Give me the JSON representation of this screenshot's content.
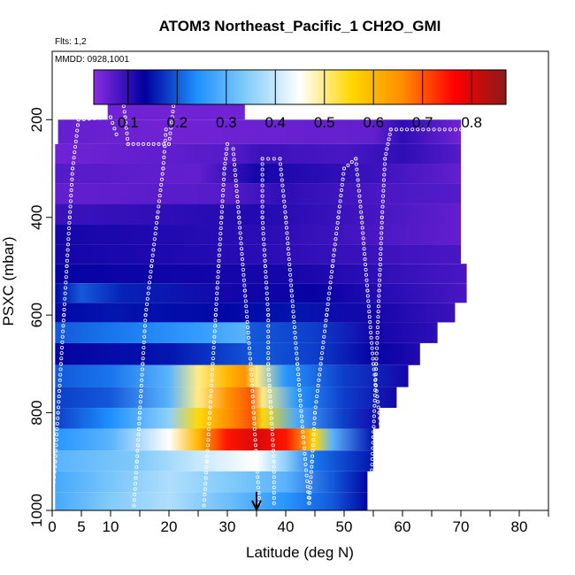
{
  "chart_data": {
    "type": "heatmap",
    "title": "ATOM3 Northeast_Pacific_1 CH2O_GMI",
    "notes": [
      "Flts: 1,2",
      "MMDD: 0928,1001"
    ],
    "xlabel": "Latitude (deg N)",
    "ylabel": "PSXC (mbar)",
    "xlim": [
      0,
      85
    ],
    "ylim": [
      1000,
      60
    ],
    "y_reversed": true,
    "x_ticks": [
      0,
      5,
      10,
      20,
      30,
      40,
      50,
      60,
      70,
      80
    ],
    "x_minor_ticks": [
      15,
      25,
      35,
      45,
      55,
      65,
      75,
      85
    ],
    "y_ticks": [
      200,
      400,
      600,
      800,
      1000
    ],
    "colorbar": {
      "range": [
        0.03,
        0.87
      ],
      "ticks": [
        0.1,
        0.2,
        0.3,
        0.4,
        0.5,
        0.6,
        0.7,
        0.8
      ],
      "tick_labels": [
        "0.1",
        "0.2",
        "0.3",
        "0.4",
        "0.5",
        "0.6",
        "0.7",
        "0.8"
      ],
      "colors": [
        "#8a2be2",
        "#0000a0",
        "#1e90ff",
        "#87cefa",
        "#ffffff",
        "#ffd700",
        "#ff8c00",
        "#ff0000",
        "#8b1a1a"
      ]
    },
    "pressure_levels": [
      170,
      230,
      270,
      310,
      350,
      395,
      435,
      475,
      515,
      555,
      595,
      635,
      680,
      725,
      770,
      810,
      855,
      900,
      940,
      985
    ],
    "layers": [
      {
        "p": 170,
        "x0": 9.5,
        "x1": 33,
        "stops": [
          [
            9.5,
            0.05
          ],
          [
            33,
            0.05
          ]
        ]
      },
      {
        "p": 230,
        "x0": 1,
        "x1": 70,
        "stops": [
          [
            1,
            0.06
          ],
          [
            20,
            0.05
          ],
          [
            55,
            0.06
          ],
          [
            60,
            0.1
          ],
          [
            70,
            0.05
          ]
        ]
      },
      {
        "p": 270,
        "x0": 0.5,
        "x1": 70,
        "stops": [
          [
            0.5,
            0.05
          ],
          [
            30,
            0.07
          ],
          [
            36,
            0.09
          ],
          [
            50,
            0.08
          ],
          [
            60,
            0.1
          ],
          [
            70,
            0.07
          ]
        ]
      },
      {
        "p": 310,
        "x0": 0.5,
        "x1": 70,
        "stops": [
          [
            0.5,
            0.07
          ],
          [
            25,
            0.06
          ],
          [
            35,
            0.12
          ],
          [
            55,
            0.09
          ],
          [
            70,
            0.06
          ]
        ]
      },
      {
        "p": 350,
        "x0": 0.5,
        "x1": 70,
        "stops": [
          [
            0.5,
            0.06
          ],
          [
            30,
            0.07
          ],
          [
            40,
            0.1
          ],
          [
            55,
            0.08
          ],
          [
            70,
            0.07
          ]
        ]
      },
      {
        "p": 395,
        "x0": 0.5,
        "x1": 70,
        "stops": [
          [
            0.5,
            0.09
          ],
          [
            20,
            0.1
          ],
          [
            35,
            0.11
          ],
          [
            50,
            0.09
          ],
          [
            70,
            0.06
          ]
        ]
      },
      {
        "p": 435,
        "x0": 0.5,
        "x1": 70,
        "stops": [
          [
            0.5,
            0.12
          ],
          [
            20,
            0.11
          ],
          [
            40,
            0.1
          ],
          [
            55,
            0.08
          ],
          [
            70,
            0.06
          ]
        ]
      },
      {
        "p": 475,
        "x0": 0.5,
        "x1": 70,
        "stops": [
          [
            0.5,
            0.12
          ],
          [
            25,
            0.11
          ],
          [
            40,
            0.1
          ],
          [
            55,
            0.09
          ],
          [
            70,
            0.08
          ]
        ]
      },
      {
        "p": 515,
        "x0": 0.5,
        "x1": 71,
        "stops": [
          [
            0.5,
            0.13
          ],
          [
            30,
            0.12
          ],
          [
            40,
            0.12
          ],
          [
            55,
            0.1
          ],
          [
            71,
            0.08
          ]
        ]
      },
      {
        "p": 555,
        "x0": 0.5,
        "x1": 71,
        "stops": [
          [
            0.5,
            0.14
          ],
          [
            5,
            0.2
          ],
          [
            12,
            0.16
          ],
          [
            30,
            0.12
          ],
          [
            45,
            0.13
          ],
          [
            55,
            0.11
          ],
          [
            71,
            0.08
          ]
        ]
      },
      {
        "p": 595,
        "x0": 0.5,
        "x1": 69,
        "stops": [
          [
            0.5,
            0.14
          ],
          [
            10,
            0.15
          ],
          [
            30,
            0.14
          ],
          [
            42,
            0.15
          ],
          [
            55,
            0.12
          ],
          [
            69,
            0.09
          ]
        ]
      },
      {
        "p": 635,
        "x0": 0.5,
        "x1": 66,
        "stops": [
          [
            0.5,
            0.2
          ],
          [
            10,
            0.22
          ],
          [
            25,
            0.26
          ],
          [
            33,
            0.3
          ],
          [
            34,
            0.2
          ],
          [
            45,
            0.18
          ],
          [
            55,
            0.12
          ],
          [
            66,
            0.1
          ]
        ]
      },
      {
        "p": 680,
        "x0": 0.5,
        "x1": 63,
        "stops": [
          [
            0.5,
            0.13
          ],
          [
            20,
            0.15
          ],
          [
            35,
            0.2
          ],
          [
            45,
            0.18
          ],
          [
            55,
            0.13
          ],
          [
            63,
            0.11
          ]
        ]
      },
      {
        "p": 725,
        "x0": 0.5,
        "x1": 61,
        "stops": [
          [
            0.5,
            0.2
          ],
          [
            10,
            0.22
          ],
          [
            20,
            0.3
          ],
          [
            25,
            0.5
          ],
          [
            30,
            0.6
          ],
          [
            33,
            0.65
          ],
          [
            35,
            0.5
          ],
          [
            40,
            0.25
          ],
          [
            50,
            0.18
          ],
          [
            61,
            0.12
          ]
        ]
      },
      {
        "p": 770,
        "x0": 0.5,
        "x1": 59,
        "stops": [
          [
            0.5,
            0.18
          ],
          [
            10,
            0.2
          ],
          [
            20,
            0.3
          ],
          [
            25,
            0.5
          ],
          [
            30,
            0.65
          ],
          [
            34,
            0.7
          ],
          [
            36,
            0.5
          ],
          [
            42,
            0.25
          ],
          [
            50,
            0.18
          ],
          [
            59,
            0.12
          ]
        ]
      },
      {
        "p": 810,
        "x0": 0.5,
        "x1": 56,
        "stops": [
          [
            0.5,
            0.18
          ],
          [
            10,
            0.24
          ],
          [
            20,
            0.35
          ],
          [
            25,
            0.55
          ],
          [
            30,
            0.65
          ],
          [
            34,
            0.7
          ],
          [
            36,
            0.55
          ],
          [
            42,
            0.28
          ],
          [
            50,
            0.18
          ],
          [
            56,
            0.12
          ]
        ]
      },
      {
        "p": 855,
        "x0": 0.5,
        "x1": 55,
        "stops": [
          [
            0.5,
            0.25
          ],
          [
            10,
            0.3
          ],
          [
            20,
            0.45
          ],
          [
            25,
            0.6
          ],
          [
            30,
            0.75
          ],
          [
            35,
            0.8
          ],
          [
            40,
            0.75
          ],
          [
            45,
            0.55
          ],
          [
            48,
            0.3
          ],
          [
            55,
            0.15
          ]
        ]
      },
      {
        "p": 900,
        "x0": 0.5,
        "x1": 55,
        "stops": [
          [
            0.5,
            0.3
          ],
          [
            15,
            0.34
          ],
          [
            25,
            0.4
          ],
          [
            35,
            0.45
          ],
          [
            40,
            0.35
          ],
          [
            45,
            0.22
          ],
          [
            55,
            0.15
          ]
        ]
      },
      {
        "p": 940,
        "x0": 0.5,
        "x1": 54,
        "stops": [
          [
            0.5,
            0.28
          ],
          [
            10,
            0.33
          ],
          [
            20,
            0.38
          ],
          [
            30,
            0.34
          ],
          [
            40,
            0.3
          ],
          [
            48,
            0.2
          ],
          [
            54,
            0.14
          ]
        ]
      },
      {
        "p": 985,
        "x0": 0.5,
        "x1": 54,
        "stops": [
          [
            0.5,
            0.28
          ],
          [
            10,
            0.34
          ],
          [
            20,
            0.38
          ],
          [
            30,
            0.32
          ],
          [
            40,
            0.25
          ],
          [
            48,
            0.2
          ],
          [
            54,
            0.14
          ]
        ]
      }
    ],
    "flight_tracks": [
      [
        [
          9.5,
          150
        ],
        [
          12,
          150
        ],
        [
          12.5,
          195
        ],
        [
          13,
          250
        ],
        [
          20,
          250
        ],
        [
          21,
          150
        ],
        [
          24.5,
          150
        ],
        [
          25,
          143
        ],
        [
          28,
          143
        ]
      ],
      [
        [
          0,
          985
        ],
        [
          0.5,
          900
        ],
        [
          1,
          800
        ],
        [
          1.5,
          700
        ],
        [
          2,
          600
        ],
        [
          2.5,
          500
        ],
        [
          3,
          400
        ],
        [
          3.5,
          300
        ],
        [
          4.5,
          200
        ],
        [
          10,
          195
        ],
        [
          11,
          230
        ]
      ],
      [
        [
          14,
          990
        ],
        [
          14.5,
          900
        ],
        [
          15,
          800
        ],
        [
          15.5,
          700
        ],
        [
          16,
          600
        ],
        [
          17,
          500
        ],
        [
          18,
          400
        ],
        [
          19,
          300
        ],
        [
          19.5,
          220
        ]
      ],
      [
        [
          26,
          990
        ],
        [
          26.5,
          900
        ],
        [
          27,
          800
        ],
        [
          27.5,
          700
        ],
        [
          28,
          600
        ],
        [
          28.5,
          500
        ],
        [
          29,
          400
        ],
        [
          29.5,
          300
        ],
        [
          30,
          250
        ]
      ],
      [
        [
          31,
          260
        ],
        [
          32,
          400
        ],
        [
          33,
          550
        ],
        [
          34,
          700
        ],
        [
          34.5,
          800
        ],
        [
          35,
          900
        ],
        [
          35.5,
          985
        ]
      ],
      [
        [
          38,
          985
        ],
        [
          38,
          900
        ],
        [
          37.5,
          800
        ],
        [
          37,
          700
        ],
        [
          37,
          600
        ],
        [
          36.5,
          500
        ],
        [
          36,
          400
        ],
        [
          36,
          280
        ],
        [
          39,
          280
        ],
        [
          40,
          400
        ],
        [
          41,
          550
        ],
        [
          42,
          700
        ],
        [
          43,
          850
        ],
        [
          44,
          985
        ]
      ],
      [
        [
          44,
          985
        ],
        [
          44.5,
          900
        ],
        [
          45,
          800
        ],
        [
          46,
          700
        ],
        [
          47,
          600
        ],
        [
          48,
          500
        ],
        [
          49,
          400
        ],
        [
          50,
          300
        ],
        [
          52,
          280
        ]
      ],
      [
        [
          52,
          280
        ],
        [
          53,
          400
        ],
        [
          54,
          550
        ],
        [
          55,
          700
        ],
        [
          56,
          800
        ],
        [
          57,
          900
        ],
        [
          57.5,
          985
        ]
      ],
      [
        [
          57,
          280
        ],
        [
          58,
          220
        ],
        [
          70,
          220
        ]
      ],
      [
        [
          57,
          280
        ],
        [
          56.5,
          400
        ],
        [
          56,
          550
        ],
        [
          55.5,
          700
        ],
        [
          55,
          850
        ],
        [
          54.5,
          985
        ]
      ]
    ],
    "arrow_x": 35
  }
}
